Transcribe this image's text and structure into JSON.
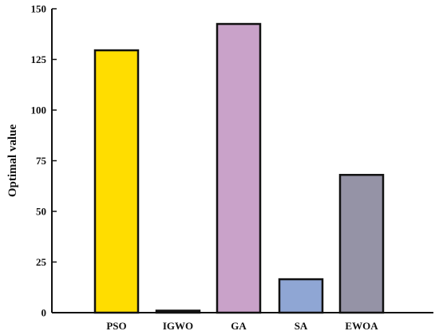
{
  "chart_data": {
    "type": "bar",
    "title": "",
    "xlabel": "",
    "ylabel": "Optimal value",
    "categories": [
      "PSO",
      "IGWO",
      "GA",
      "SA",
      "EWOA"
    ],
    "values": [
      129.5,
      1,
      142.5,
      16.5,
      68
    ],
    "colors": [
      "#ffdd00",
      "#2e2e2e",
      "#c9a2c9",
      "#8fa6d4",
      "#9593a6"
    ],
    "ylim": [
      0,
      150
    ],
    "yticks": [
      0,
      25,
      50,
      75,
      100,
      125,
      150
    ],
    "grid": false,
    "legend": "none"
  }
}
